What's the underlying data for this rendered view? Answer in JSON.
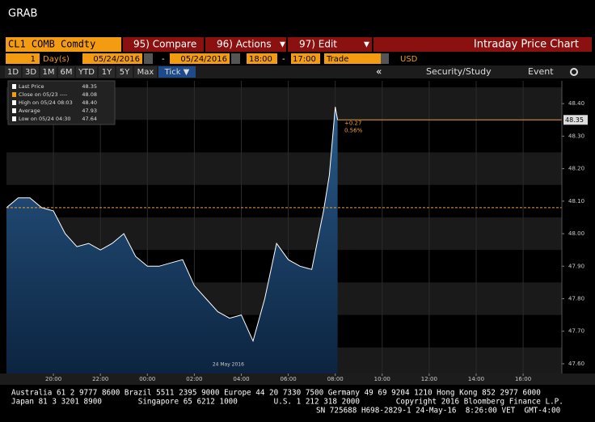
{
  "header": {
    "title": "GRAB"
  },
  "toolbar": {
    "security": "CL1 COMB Comdty",
    "compare": "95) Compare",
    "actions": "96) Actions",
    "edit": "97) Edit",
    "view": "Intraday Price Chart"
  },
  "settings": {
    "period": "1",
    "unit": "Day(s)",
    "start_date": "05/24/2016",
    "dash1": "-",
    "end_date": "05/24/2016",
    "start_time": "18:00",
    "dash2": "-",
    "end_time": "17:00",
    "field": "Trade",
    "currency": "USD"
  },
  "ranges": [
    "1D",
    "3D",
    "1M",
    "6M",
    "YTD",
    "1Y",
    "5Y",
    "Max",
    "Tick ▼"
  ],
  "tools": {
    "back": "«",
    "study": "Security/Study",
    "event": "Event"
  },
  "legend": [
    {
      "label": "Last Price",
      "value": "48.35"
    },
    {
      "label": "Close on 05/23 ----",
      "value": "48.08"
    },
    {
      "label": "High on 05/24 08:03",
      "value": "48.40"
    },
    {
      "label": "Average",
      "value": "47.93"
    },
    {
      "label": "Low on 05/24 04:30",
      "value": "47.64"
    }
  ],
  "footer": [
    "Australia 61 2 9777 8600 Brazil 5511 2395 9000 Europe 44 20 7330 7500 Germany 49 69 9204 1210 Hong Kong 852 2977 6000",
    "Japan 81 3 3201 8900        Singapore 65 6212 1000        U.S. 1 212 318 2000        Copyright 2016 Bloomberg Finance L.P.",
    "SN 725688 H698-2829-1 24-May-16  8:26:00 VET  GMT-4:00"
  ],
  "chart_data": {
    "type": "area",
    "date_label": "24 May 2016",
    "annotations": [
      "+0.27",
      "0.56%"
    ],
    "x": [
      18,
      18.5,
      19,
      19.5,
      20,
      20.5,
      21,
      21.5,
      22,
      22.5,
      23,
      23.5,
      24,
      24.5,
      25,
      25.5,
      26,
      26.5,
      27,
      27.5,
      28,
      28.5,
      29,
      29.5,
      30,
      30.5,
      31,
      31.5,
      31.75,
      32,
      32.1
    ],
    "series": [
      {
        "name": "Last Price",
        "color": "#ffffff",
        "values": [
          48.08,
          48.11,
          48.11,
          48.08,
          48.07,
          48.0,
          47.96,
          47.97,
          47.95,
          47.97,
          48.0,
          47.93,
          47.9,
          47.9,
          47.91,
          47.92,
          47.84,
          47.8,
          47.76,
          47.74,
          47.75,
          47.67,
          47.8,
          47.97,
          47.92,
          47.9,
          47.89,
          48.07,
          48.18,
          48.39,
          48.35
        ]
      }
    ],
    "reference_lines": [
      {
        "name": "Last Price",
        "value": 48.35,
        "color": "#f0a030"
      },
      {
        "name": "Close on 05/23",
        "value": 48.08,
        "color": "#f0a030"
      }
    ],
    "xlim": [
      18,
      41.65
    ],
    "xticks": [
      {
        "value": 20,
        "label": "20:00"
      },
      {
        "value": 22,
        "label": "22:00"
      },
      {
        "value": 24,
        "label": "00:00"
      },
      {
        "value": 26,
        "label": "02:00"
      },
      {
        "value": 28,
        "label": "04:00"
      },
      {
        "value": 30,
        "label": "06:00"
      },
      {
        "value": 32,
        "label": "08:00"
      },
      {
        "value": 34,
        "label": "10:00"
      },
      {
        "value": 36,
        "label": "12:00"
      },
      {
        "value": 38,
        "label": "14:00"
      },
      {
        "value": 40,
        "label": "16:00"
      }
    ],
    "ylim": [
      47.57,
      48.47
    ],
    "yticks": [
      {
        "value": 47.6,
        "label": "47.60"
      },
      {
        "value": 47.7,
        "label": "47.70"
      },
      {
        "value": 47.8,
        "label": "47.80"
      },
      {
        "value": 47.9,
        "label": "47.90"
      },
      {
        "value": 48.0,
        "label": "48.00"
      },
      {
        "value": 48.1,
        "label": "48.10"
      },
      {
        "value": 48.2,
        "label": "48.20"
      },
      {
        "value": 48.3,
        "label": "48.30"
      },
      {
        "value": 48.4,
        "label": "48.40"
      }
    ],
    "grid": true
  }
}
